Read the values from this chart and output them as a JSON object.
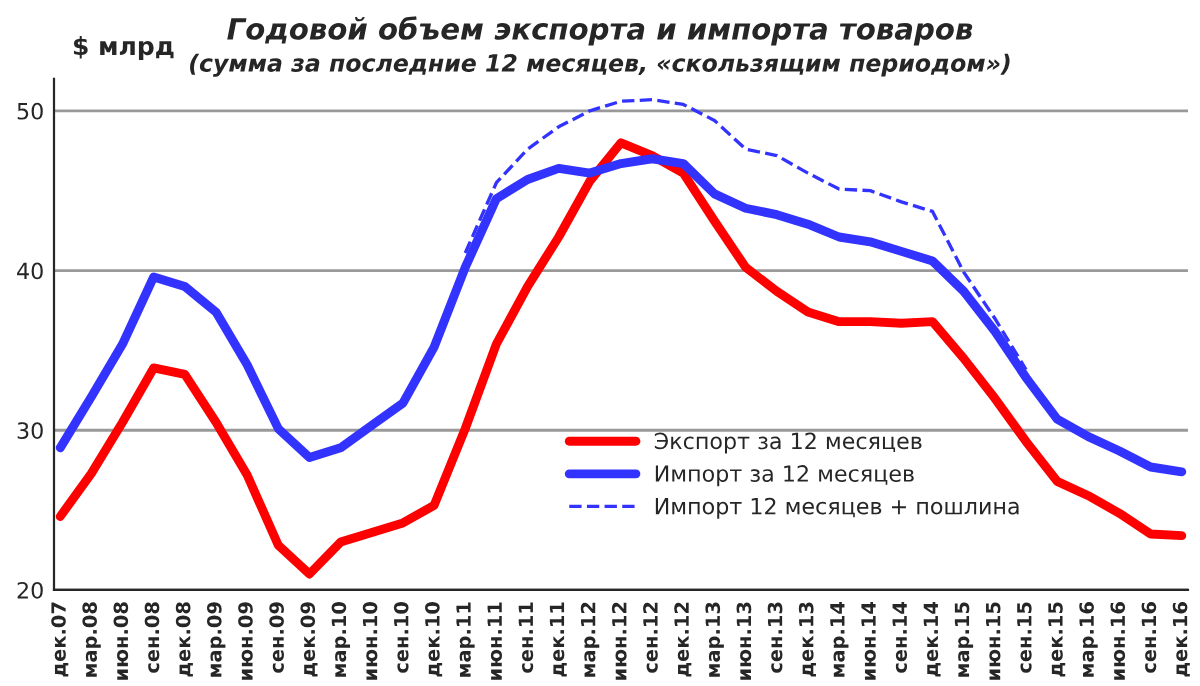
{
  "chart_data": {
    "type": "line",
    "title": "Годовой объем экспорта и импорта товаров",
    "subtitle": "(сумма за последние 12 месяцев, «скользящим периодом»)",
    "ylabel": "$ млрд",
    "categories": [
      "дек.07",
      "мар.08",
      "июн.08",
      "сен.08",
      "дек.08",
      "мар.09",
      "июн.09",
      "сен.09",
      "дек.09",
      "мар.10",
      "июн.10",
      "сен.10",
      "дек.10",
      "мар.11",
      "июн.11",
      "сен.11",
      "дек.11",
      "мар.12",
      "июн.12",
      "сен.12",
      "дек.12",
      "мар.13",
      "июн.13",
      "сен.13",
      "дек.13",
      "мар.14",
      "июн.14",
      "сен.14",
      "дек.14",
      "мар.15",
      "июн.15",
      "сен.15",
      "дек.15",
      "мар.16",
      "июн.16",
      "сен.16",
      "дек.16"
    ],
    "series": [
      {
        "name": "Экспорт за 12 месяцев",
        "color": "#ff0000",
        "line_style": "solid",
        "values": [
          24.6,
          27.3,
          30.5,
          33.9,
          33.5,
          30.5,
          27.2,
          22.8,
          21.0,
          23.0,
          23.6,
          24.2,
          25.3,
          30.1,
          35.4,
          39.0,
          42.1,
          45.6,
          48.0,
          47.2,
          46.1,
          43.1,
          40.2,
          38.7,
          37.4,
          36.8,
          36.8,
          36.7,
          36.8,
          34.5,
          32.0,
          29.3,
          26.8,
          25.9,
          24.8,
          23.5,
          23.4
        ]
      },
      {
        "name": "Импорт за 12 месяцев",
        "color": "#3333ff",
        "line_style": "solid",
        "values": [
          28.9,
          32.1,
          35.4,
          39.6,
          39.0,
          37.4,
          34.1,
          30.1,
          28.3,
          28.9,
          30.3,
          31.7,
          35.2,
          40.2,
          44.5,
          45.7,
          46.4,
          46.1,
          46.7,
          47.0,
          46.7,
          44.8,
          43.9,
          43.5,
          42.9,
          42.1,
          41.8,
          41.2,
          40.6,
          38.7,
          36.2,
          33.3,
          30.7,
          29.6,
          28.7,
          27.7,
          27.4
        ]
      },
      {
        "name": "Импорт 12 месяцев + пошлина",
        "color": "#3333ff",
        "line_style": "dashed",
        "values": [
          null,
          null,
          null,
          null,
          null,
          null,
          null,
          null,
          null,
          null,
          null,
          null,
          null,
          41.1,
          45.5,
          47.6,
          49.0,
          50.0,
          50.6,
          50.7,
          50.4,
          49.4,
          47.6,
          47.2,
          46.1,
          45.1,
          45.0,
          44.3,
          43.7,
          39.9,
          37.0,
          33.8,
          null,
          null,
          null,
          null,
          null
        ]
      }
    ],
    "ylim": [
      20,
      52
    ],
    "yticks": [
      20,
      30,
      40,
      50
    ],
    "grid": "y",
    "legend": "bottom right"
  }
}
